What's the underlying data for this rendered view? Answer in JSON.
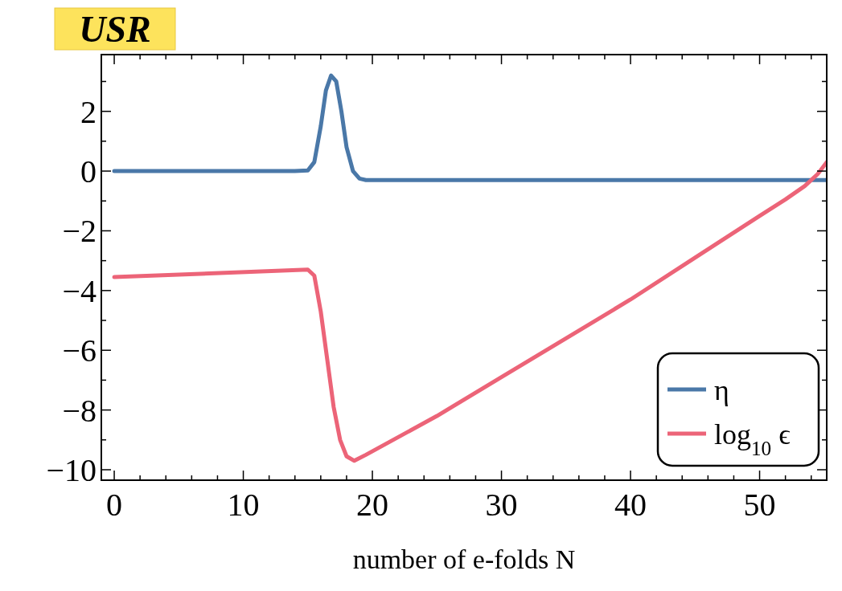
{
  "chart_data": {
    "type": "line",
    "xlabel": "number of e-folds N",
    "annotations": [
      "USR"
    ],
    "xlim": [
      -1,
      55.2
    ],
    "ylim": [
      -10.35,
      3.9
    ],
    "xticks": [
      0,
      {
        "value": 2,
        "label": null
      },
      {
        "value": 4,
        "label": null
      },
      {
        "value": 6,
        "label": null
      },
      {
        "value": 8,
        "label": null
      },
      10,
      {
        "value": 12,
        "label": null
      },
      {
        "value": 14,
        "label": null
      },
      {
        "value": 16,
        "label": null
      },
      {
        "value": 18,
        "label": null
      },
      20,
      {
        "value": 22,
        "label": null
      },
      {
        "value": 24,
        "label": null
      },
      {
        "value": 26,
        "label": null
      },
      {
        "value": 28,
        "label": null
      },
      30,
      {
        "value": 32,
        "label": null
      },
      {
        "value": 34,
        "label": null
      },
      {
        "value": 36,
        "label": null
      },
      {
        "value": 38,
        "label": null
      },
      40,
      {
        "value": 42,
        "label": null
      },
      {
        "value": 44,
        "label": null
      },
      {
        "value": 46,
        "label": null
      },
      {
        "value": 48,
        "label": null
      },
      50,
      {
        "value": 52,
        "label": null
      },
      {
        "value": 54,
        "label": null
      }
    ],
    "yticks": [
      {
        "value": -10,
        "label": "−10"
      },
      {
        "value": -9,
        "label": null
      },
      {
        "value": -8,
        "label": "−8"
      },
      {
        "value": -7,
        "label": null
      },
      {
        "value": -6,
        "label": "−6"
      },
      {
        "value": -5,
        "label": null
      },
      {
        "value": -4,
        "label": "−4"
      },
      {
        "value": -3,
        "label": null
      },
      {
        "value": -2,
        "label": "−2"
      },
      {
        "value": -1,
        "label": null
      },
      0,
      {
        "value": 1,
        "label": null
      },
      2,
      {
        "value": 3,
        "label": null
      }
    ],
    "grid": false,
    "legend": "bottom right",
    "line_style": "solid",
    "marker": "none",
    "series": [
      {
        "name": "η",
        "color": "#4a78a8",
        "x": [
          0,
          14,
          15,
          15.5,
          16,
          16.4,
          16.8,
          17.2,
          17.6,
          18,
          18.5,
          19,
          19.5,
          20,
          30,
          40,
          55.2
        ],
        "values": [
          0,
          0,
          0.02,
          0.3,
          1.5,
          2.7,
          3.2,
          3.0,
          2.0,
          0.8,
          0,
          -0.25,
          -0.3,
          -0.3,
          -0.3,
          -0.3,
          -0.3
        ]
      },
      {
        "name": "log$_{10}$ ϵ",
        "color": "#ec6478",
        "x": [
          0,
          15,
          15.5,
          16,
          16.5,
          17,
          17.5,
          18,
          18.6,
          19.5,
          25,
          30,
          35,
          40,
          45,
          50,
          52,
          53.5,
          54.5,
          55.2
        ],
        "values": [
          -3.55,
          -3.3,
          -3.5,
          -4.7,
          -6.3,
          -7.9,
          -9.0,
          -9.55,
          -9.7,
          -9.5,
          -8.2,
          -6.9,
          -5.6,
          -4.3,
          -2.9,
          -1.5,
          -0.95,
          -0.5,
          -0.1,
          0.3
        ]
      }
    ]
  }
}
